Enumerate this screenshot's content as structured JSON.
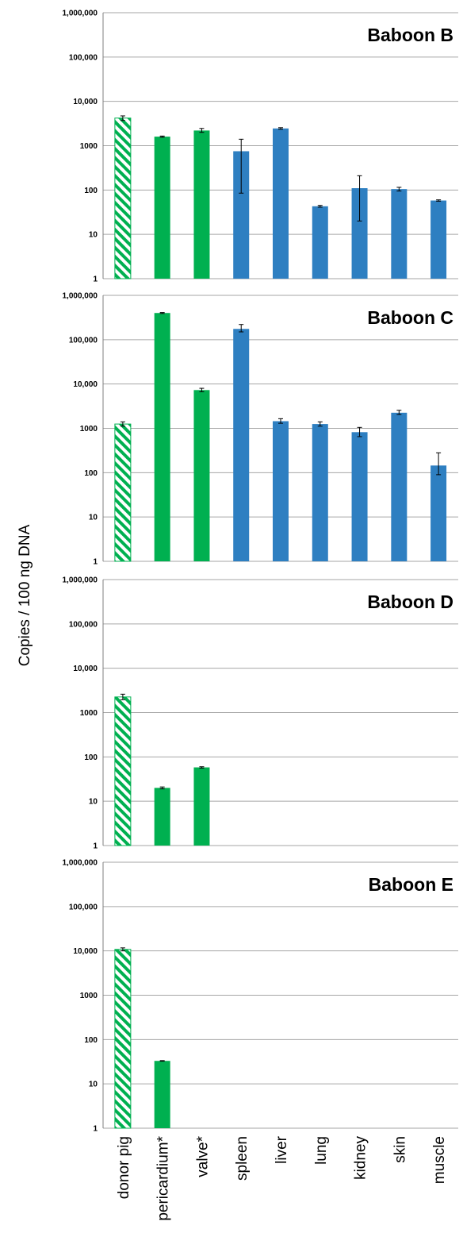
{
  "chart_data": {
    "type": "bar",
    "scale": "log",
    "ylabel": "Copies / 100 ng DNA",
    "ylim": [
      1,
      1000000
    ],
    "y_ticks": [
      {
        "value": 1,
        "label": "1"
      },
      {
        "value": 10,
        "label": "10"
      },
      {
        "value": 100,
        "label": "100"
      },
      {
        "value": 1000,
        "label": "1000"
      },
      {
        "value": 10000,
        "label": "10,000"
      },
      {
        "value": 100000,
        "label": "100,000"
      },
      {
        "value": 1000000,
        "label": "1,000,000"
      }
    ],
    "categories": [
      "donor pig",
      "pericardium*",
      "valve*",
      "spleen",
      "liver",
      "lung",
      "kidney",
      "skin",
      "muscle"
    ],
    "category_styles": [
      "hatched-green",
      "green",
      "green",
      "blue",
      "blue",
      "blue",
      "blue",
      "blue",
      "blue"
    ],
    "colors": {
      "green": "#00b050",
      "blue": "#2e7fc1",
      "grid": "#a6a6a6"
    },
    "grid": true,
    "panels": [
      {
        "title": "Baboon B",
        "values": [
          4200,
          1600,
          2200,
          750,
          2450,
          43,
          110,
          105,
          58
        ],
        "errors": [
          [
            3700,
            4700
          ],
          [
            1550,
            1650
          ],
          [
            2000,
            2450
          ],
          [
            85,
            1400
          ],
          [
            2350,
            2550
          ],
          [
            41,
            45
          ],
          [
            20,
            210
          ],
          [
            95,
            115
          ],
          [
            56,
            60
          ]
        ]
      },
      {
        "title": "Baboon C",
        "values": [
          1250,
          400000,
          7300,
          175000,
          1450,
          1250,
          820,
          2250,
          145
        ],
        "errors": [
          [
            1120,
            1400
          ],
          [
            390000,
            410000
          ],
          [
            6700,
            8000
          ],
          [
            150000,
            220000
          ],
          [
            1300,
            1650
          ],
          [
            1120,
            1400
          ],
          [
            650,
            1050
          ],
          [
            2050,
            2550
          ],
          [
            90,
            280
          ]
        ]
      },
      {
        "title": "Baboon D",
        "values": [
          2250,
          20,
          58,
          null,
          null,
          null,
          null,
          null,
          null
        ],
        "errors": [
          [
            1950,
            2600
          ],
          [
            19,
            21
          ],
          [
            56,
            60
          ],
          null,
          null,
          null,
          null,
          null,
          null
        ]
      },
      {
        "title": "Baboon E",
        "values": [
          10800,
          33,
          null,
          null,
          null,
          null,
          null,
          null,
          null
        ],
        "errors": [
          [
            10000,
            11700
          ],
          [
            32.5,
            33.5
          ],
          null,
          null,
          null,
          null,
          null,
          null,
          null
        ]
      }
    ]
  }
}
